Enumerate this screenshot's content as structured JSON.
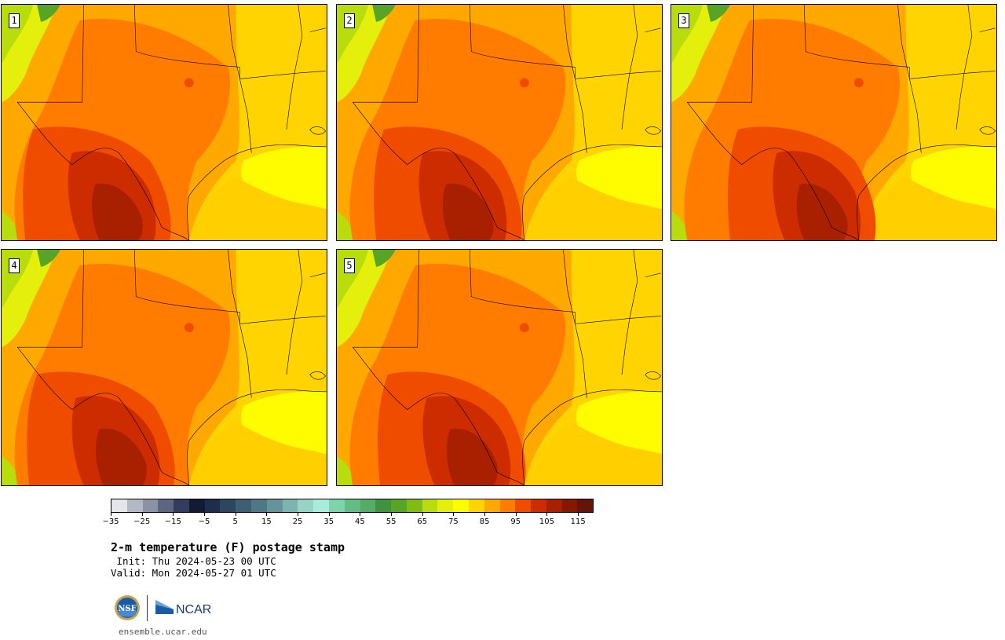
{
  "panels": [
    {
      "label": "1",
      "variant": 0
    },
    {
      "label": "2",
      "variant": 1
    },
    {
      "label": "3",
      "variant": 2
    },
    {
      "label": "4",
      "variant": 3
    },
    {
      "label": "5",
      "variant": 4
    }
  ],
  "colorbar": {
    "colors": [
      "#e4e6ec",
      "#b4b8c6",
      "#8c92a6",
      "#5d6680",
      "#323c5c",
      "#111c34",
      "#1c2e4c",
      "#2c4660",
      "#3e5e74",
      "#4f7886",
      "#64949a",
      "#7cb4b0",
      "#96d4c8",
      "#a8ecdc",
      "#7cd4a8",
      "#64bc84",
      "#56ac64",
      "#3e943c",
      "#58a424",
      "#80bc14",
      "#b8dc0c",
      "#e4f00c",
      "#fffc00",
      "#ffd400",
      "#ffa800",
      "#ff7c00",
      "#f04c00",
      "#cc2c00",
      "#a82000",
      "#861800",
      "#641408"
    ],
    "ticks": [
      "−35",
      "−25",
      "−15",
      "−5",
      "5",
      "15",
      "25",
      "35",
      "45",
      "55",
      "65",
      "75",
      "85",
      "95",
      "105",
      "115"
    ]
  },
  "title": "2-m temperature (F) postage stamp",
  "init": " Init: Thu 2024-05-23 00 UTC",
  "valid": "Valid: Mon 2024-05-27 01 UTC",
  "logos": {
    "nsf_text": "NSF",
    "ncar_text": "NCAR"
  },
  "site": "ensemble.ucar.edu"
}
